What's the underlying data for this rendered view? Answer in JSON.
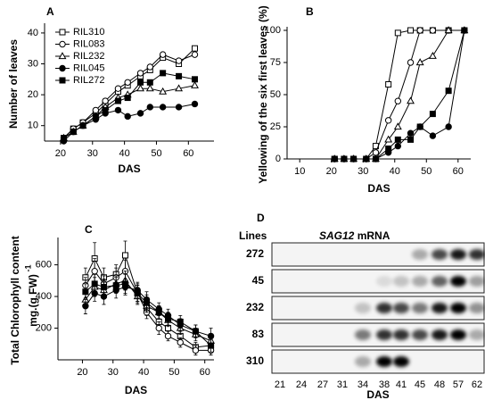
{
  "chart_data": [
    {
      "type": "line",
      "label": "A",
      "ylabel": "Number of leaves",
      "xlabel": "DAS",
      "x": [
        21,
        24,
        27,
        31,
        34,
        38,
        41,
        45,
        48,
        52,
        57,
        62
      ],
      "xlim": [
        15,
        68
      ],
      "xticks": [
        20,
        30,
        40,
        50,
        60
      ],
      "ylim": [
        5,
        42
      ],
      "yticks": [
        10,
        20,
        30,
        40
      ],
      "legend": "upper left",
      "series": [
        {
          "name": "RIL310",
          "marker": "square-open",
          "color": "#000000",
          "values": [
            6,
            9,
            11,
            14,
            17,
            21,
            23,
            26,
            28,
            32,
            30,
            35
          ]
        },
        {
          "name": "RIL083",
          "marker": "circle-open",
          "color": "#000000",
          "values": [
            6,
            9,
            11,
            15,
            18,
            22,
            24,
            27,
            29,
            33,
            31,
            33
          ]
        },
        {
          "name": "RIL232",
          "marker": "triangle-open",
          "color": "#000000",
          "values": [
            6,
            8,
            10,
            13,
            16,
            19,
            20,
            22,
            22,
            21,
            22,
            23
          ]
        },
        {
          "name": "RIL045",
          "marker": "circle-filled",
          "color": "#000000",
          "values": [
            5,
            8,
            10,
            12,
            14,
            15,
            13,
            14,
            16,
            16,
            16,
            17
          ]
        },
        {
          "name": "RIL272",
          "marker": "square-filled",
          "color": "#000000",
          "values": [
            6,
            8,
            10,
            13,
            15,
            18,
            19,
            24,
            24,
            27,
            26,
            25
          ]
        }
      ]
    },
    {
      "type": "line",
      "label": "B",
      "ylabel": "Yellowing of the six first leaves (%)",
      "xlabel": "DAS",
      "x": [
        21,
        24,
        27,
        31,
        34,
        38,
        41,
        45,
        48,
        52,
        57,
        62
      ],
      "xlim": [
        6,
        64
      ],
      "xticks": [
        10,
        20,
        30,
        40,
        50,
        60
      ],
      "ylim": [
        0,
        100
      ],
      "yticks": [
        0,
        25,
        50,
        75,
        100
      ],
      "series": [
        {
          "marker": "square-open",
          "color": "#000000",
          "values": [
            0,
            0,
            0,
            0,
            10,
            58,
            98,
            100,
            100,
            100,
            100,
            100
          ]
        },
        {
          "marker": "circle-open",
          "color": "#000000",
          "values": [
            0,
            0,
            0,
            0,
            5,
            30,
            45,
            75,
            100,
            100,
            100,
            100
          ]
        },
        {
          "marker": "triangle-open",
          "color": "#000000",
          "values": [
            0,
            0,
            0,
            0,
            0,
            15,
            25,
            45,
            75,
            80,
            100,
            100
          ]
        },
        {
          "marker": "circle-filled",
          "color": "#000000",
          "values": [
            0,
            0,
            0,
            0,
            0,
            5,
            10,
            20,
            25,
            18,
            25,
            100
          ]
        },
        {
          "marker": "square-filled",
          "color": "#000000",
          "values": [
            0,
            0,
            0,
            0,
            0,
            8,
            15,
            15,
            25,
            35,
            53,
            100
          ]
        }
      ]
    },
    {
      "type": "line",
      "label": "C",
      "ylabel": [
        "Total Chlorophyll content",
        "mg.(g FW)"
      ],
      "ylabel_sup": "-1",
      "xlabel": "DAS",
      "x": [
        21,
        24,
        27,
        31,
        34,
        38,
        41,
        45,
        48,
        52,
        57,
        62
      ],
      "xlim": [
        12,
        63
      ],
      "xticks": [
        20,
        30,
        40,
        50,
        60
      ],
      "ylim": [
        0,
        750
      ],
      "yticks": [
        200,
        400,
        600
      ],
      "series": [
        {
          "marker": "square-open",
          "color": "#000000",
          "values": [
            520,
            640,
            520,
            540,
            660,
            420,
            330,
            240,
            200,
            150,
            80,
            90
          ],
          "errors": [
            60,
            100,
            60,
            60,
            90,
            60,
            50,
            40,
            40,
            40,
            30,
            30
          ]
        },
        {
          "marker": "circle-open",
          "color": "#000000",
          "values": [
            470,
            560,
            480,
            520,
            560,
            420,
            300,
            200,
            150,
            110,
            60,
            60
          ],
          "errors": [
            50,
            80,
            50,
            60,
            70,
            50,
            40,
            40,
            30,
            30,
            30,
            30
          ]
        },
        {
          "marker": "triangle-open",
          "color": "#000000",
          "values": [
            380,
            460,
            440,
            480,
            500,
            400,
            340,
            300,
            250,
            200,
            160,
            120
          ],
          "errors": [
            50,
            60,
            50,
            50,
            60,
            50,
            40,
            40,
            40,
            40,
            40,
            40
          ]
        },
        {
          "marker": "circle-filled",
          "color": "#000000",
          "values": [
            340,
            420,
            400,
            440,
            460,
            440,
            380,
            320,
            280,
            220,
            180,
            150
          ],
          "errors": [
            50,
            50,
            50,
            50,
            50,
            50,
            50,
            40,
            40,
            40,
            40,
            50
          ]
        },
        {
          "marker": "square-filled",
          "color": "#000000",
          "values": [
            430,
            480,
            460,
            470,
            480,
            420,
            360,
            300,
            260,
            240,
            180,
            90
          ],
          "errors": [
            50,
            60,
            50,
            50,
            60,
            50,
            50,
            40,
            40,
            40,
            40,
            40
          ]
        }
      ]
    }
  ],
  "blot": {
    "label": "D",
    "lines_label": "Lines",
    "gene": "SAG12",
    "title_rest": "mRNA",
    "rows": [
      "272",
      "45",
      "232",
      "83",
      "310"
    ],
    "columns": [
      "21",
      "24",
      "27",
      "31",
      "34",
      "38",
      "41",
      "45",
      "48",
      "57",
      "62"
    ],
    "xlabel": "DAS"
  }
}
